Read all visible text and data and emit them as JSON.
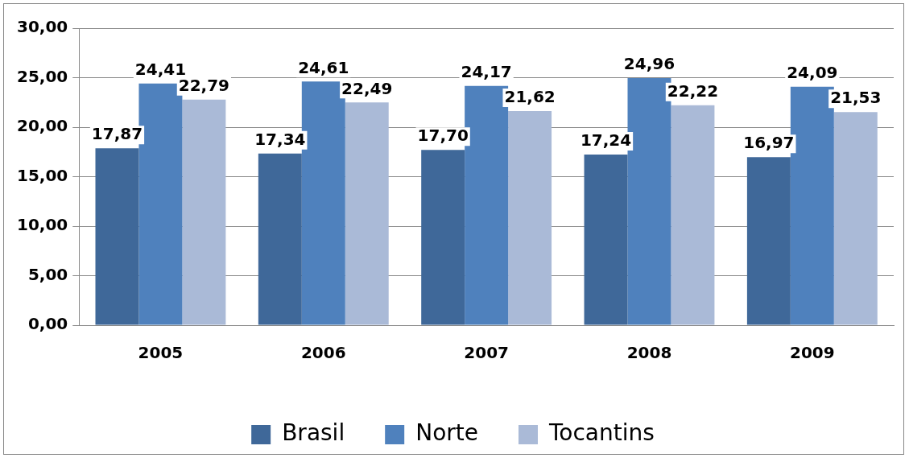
{
  "chart_data": {
    "type": "bar",
    "categories": [
      "2005",
      "2006",
      "2007",
      "2008",
      "2009"
    ],
    "series": [
      {
        "name": "Brasil",
        "color": "#3f6899",
        "values": [
          17.87,
          17.34,
          17.7,
          17.24,
          16.97
        ],
        "value_labels": [
          "17,87",
          "17,34",
          "17,70",
          "17,24",
          "16,97"
        ]
      },
      {
        "name": "Norte",
        "color": "#4f81bd",
        "values": [
          24.41,
          24.61,
          24.17,
          24.96,
          24.09
        ],
        "value_labels": [
          "24,41",
          "24,61",
          "24,17",
          "24,96",
          "24,09"
        ]
      },
      {
        "name": "Tocantins",
        "color": "#aabad7",
        "values": [
          22.79,
          22.49,
          21.62,
          22.22,
          21.53
        ],
        "value_labels": [
          "22,79",
          "22,49",
          "21,62",
          "22,22",
          "21,53"
        ]
      }
    ],
    "ylim": [
      0,
      30
    ],
    "yticks": [
      {
        "value": 0,
        "label": "0,00"
      },
      {
        "value": 5,
        "label": "5,00"
      },
      {
        "value": 10,
        "label": "10,00"
      },
      {
        "value": 15,
        "label": "15,00"
      },
      {
        "value": 20,
        "label": "20,00"
      },
      {
        "value": 25,
        "label": "25,00"
      },
      {
        "value": 30,
        "label": "30,00"
      }
    ],
    "grid": "y",
    "legend": "bottom"
  }
}
